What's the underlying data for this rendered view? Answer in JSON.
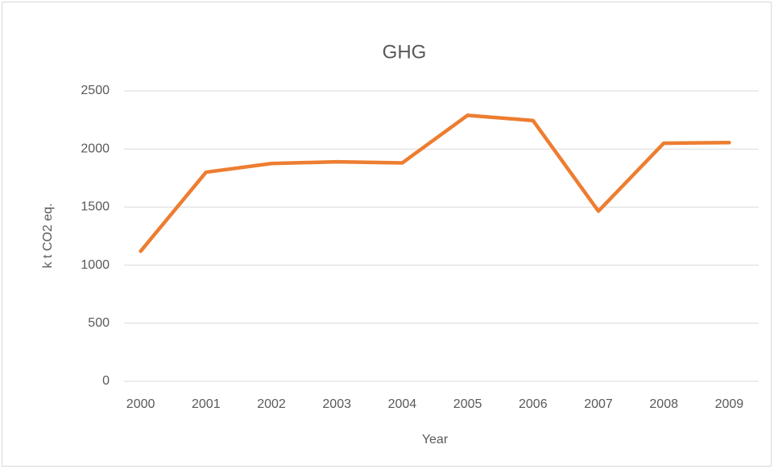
{
  "chart_data": {
    "type": "line",
    "title": "GHG",
    "xlabel": "Year",
    "ylabel": "k t CO2 eq.",
    "categories": [
      "2000",
      "2001",
      "2002",
      "2003",
      "2004",
      "2005",
      "2006",
      "2007",
      "2008",
      "2009"
    ],
    "values": [
      1120,
      1800,
      1875,
      1890,
      1880,
      2290,
      2245,
      1465,
      2050,
      2055
    ],
    "color": "#ed7d31",
    "ylim": [
      0,
      2500
    ],
    "yticks": [
      0,
      500,
      1000,
      1500,
      2000,
      2500
    ],
    "grid": true
  }
}
